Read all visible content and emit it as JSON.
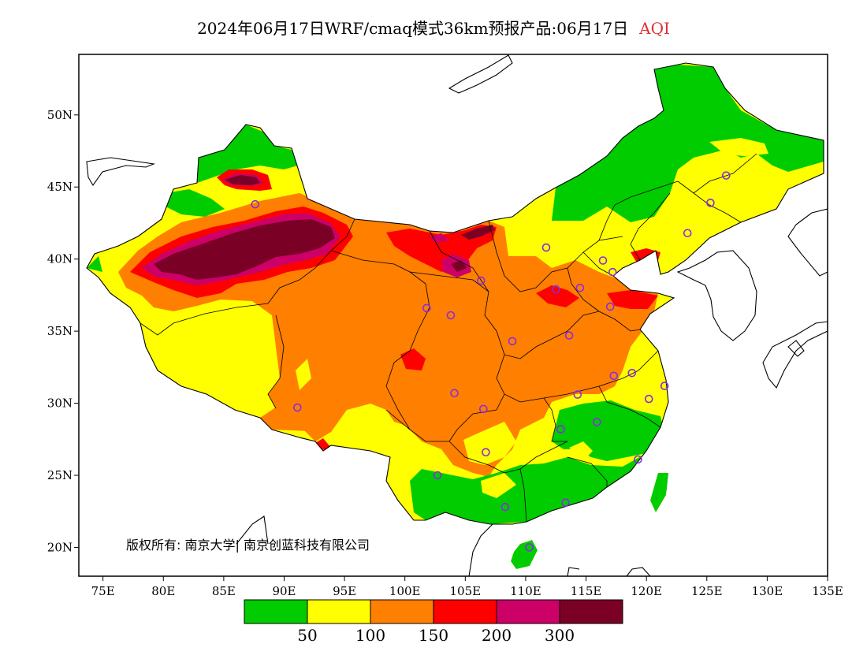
{
  "title": {
    "text": "2024年06月17日WRF/cmaq模式36km预报产品:06月17日",
    "variable": "AQI"
  },
  "axes": {
    "lon_range": [
      73,
      135
    ],
    "lat_range": [
      18,
      54.2
    ],
    "lon_ticks": [
      "75E",
      "80E",
      "85E",
      "90E",
      "95E",
      "100E",
      "105E",
      "110E",
      "115E",
      "120E",
      "125E",
      "130E",
      "135E"
    ],
    "lat_ticks": [
      "20N",
      "25N",
      "30N",
      "35N",
      "40N",
      "45N",
      "50N"
    ]
  },
  "copyright": "版权所有: 南京大学| 南京创蓝科技有限公司",
  "legend": {
    "colors": [
      "#00cc00",
      "#ffff00",
      "#ff7f00",
      "#ff0000",
      "#cc0066",
      "#7a0026"
    ],
    "labels": [
      "50",
      "100",
      "150",
      "200",
      "300"
    ]
  },
  "colors": {
    "land_background": "#ffffff",
    "frame": "#000000",
    "station_marker": "#8a2be2"
  },
  "stations": [
    {
      "lon": 87.6,
      "lat": 43.8
    },
    {
      "lon": 91.1,
      "lat": 29.7
    },
    {
      "lon": 101.8,
      "lat": 36.6
    },
    {
      "lon": 103.8,
      "lat": 36.1
    },
    {
      "lon": 106.3,
      "lat": 38.5
    },
    {
      "lon": 111.7,
      "lat": 40.8
    },
    {
      "lon": 104.1,
      "lat": 30.7
    },
    {
      "lon": 106.5,
      "lat": 29.6
    },
    {
      "lon": 102.7,
      "lat": 25.0
    },
    {
      "lon": 106.7,
      "lat": 26.6
    },
    {
      "lon": 108.9,
      "lat": 34.3
    },
    {
      "lon": 112.5,
      "lat": 37.9
    },
    {
      "lon": 114.5,
      "lat": 38.0
    },
    {
      "lon": 116.4,
      "lat": 39.9
    },
    {
      "lon": 117.2,
      "lat": 39.1
    },
    {
      "lon": 117.0,
      "lat": 36.7
    },
    {
      "lon": 113.6,
      "lat": 34.7
    },
    {
      "lon": 117.3,
      "lat": 31.9
    },
    {
      "lon": 114.3,
      "lat": 30.6
    },
    {
      "lon": 112.9,
      "lat": 28.2
    },
    {
      "lon": 115.9,
      "lat": 28.7
    },
    {
      "lon": 118.8,
      "lat": 32.1
    },
    {
      "lon": 121.5,
      "lat": 31.2
    },
    {
      "lon": 120.2,
      "lat": 30.3
    },
    {
      "lon": 119.3,
      "lat": 26.1
    },
    {
      "lon": 113.3,
      "lat": 23.1
    },
    {
      "lon": 108.3,
      "lat": 22.8
    },
    {
      "lon": 110.3,
      "lat": 20.0
    },
    {
      "lon": 123.4,
      "lat": 41.8
    },
    {
      "lon": 125.3,
      "lat": 43.9
    },
    {
      "lon": 126.6,
      "lat": 45.8
    }
  ]
}
